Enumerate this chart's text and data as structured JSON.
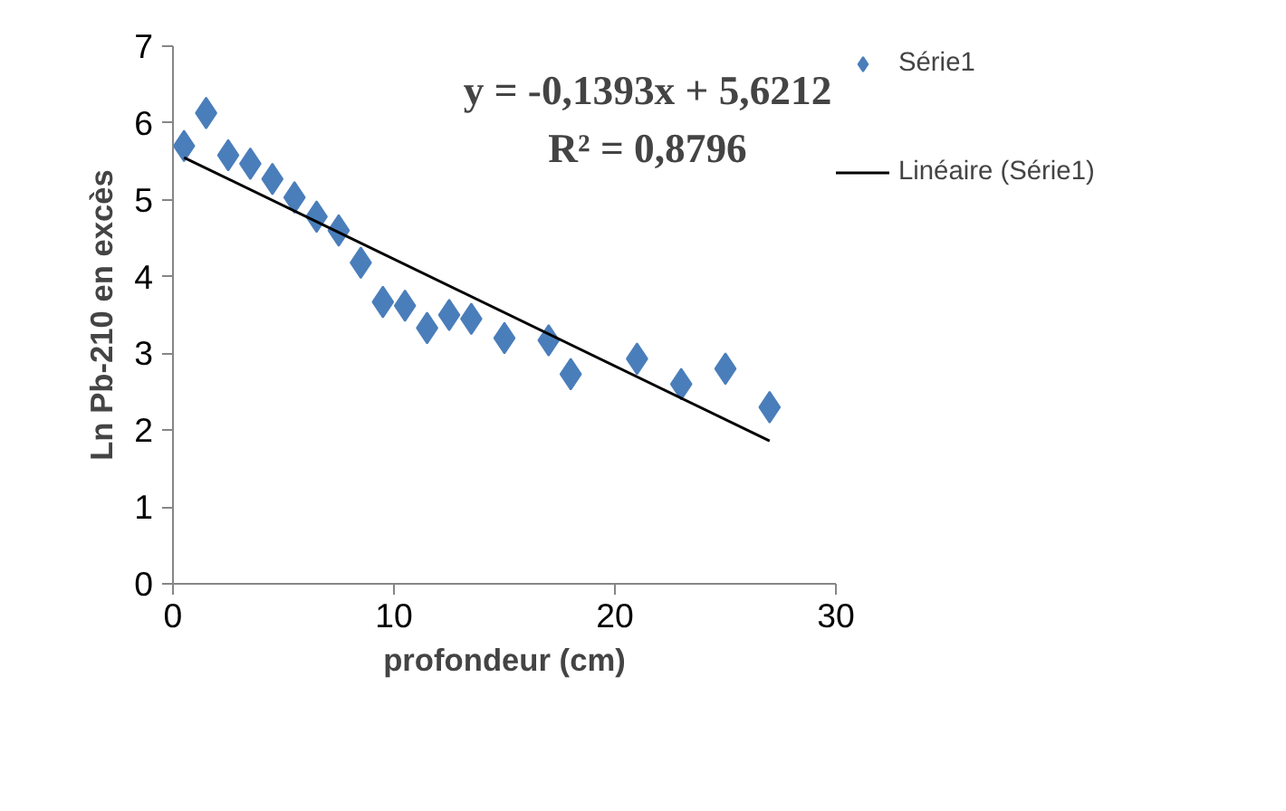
{
  "chart_data": {
    "type": "scatter",
    "xlabel": "profondeur (cm)",
    "ylabel": "Ln Pb-210 en excès",
    "annotations": [
      "y = -0,1393x + 5,6212",
      "R² = 0,8796"
    ],
    "xlim": [
      0,
      30
    ],
    "xticks": [
      0,
      10,
      20,
      30
    ],
    "ylim": [
      0,
      7
    ],
    "yticks": [
      0,
      1,
      2,
      3,
      4,
      5,
      6,
      7
    ],
    "grid": false,
    "legend": "right",
    "series": [
      {
        "name": "Série1",
        "color": "#4a7ebb",
        "marker": "diamond",
        "x": [
          0.5,
          1.5,
          2.5,
          3.5,
          4.5,
          5.5,
          6.5,
          7.5,
          8.5,
          9.5,
          10.5,
          11.5,
          12.5,
          13.5,
          15,
          17,
          18,
          21,
          23,
          25,
          27
        ],
        "values": [
          5.7,
          6.13,
          5.58,
          5.47,
          5.27,
          5.03,
          4.78,
          4.6,
          4.18,
          3.67,
          3.62,
          3.33,
          3.5,
          3.45,
          3.2,
          3.17,
          2.73,
          2.93,
          2.6,
          2.8,
          2.3
        ]
      },
      {
        "name": "Linéaire (Série1)",
        "color": "#000000",
        "type": "line",
        "line_style": "solid",
        "marker": "none",
        "x": [
          0.5,
          27
        ],
        "values": [
          5.55,
          1.86
        ]
      }
    ]
  }
}
